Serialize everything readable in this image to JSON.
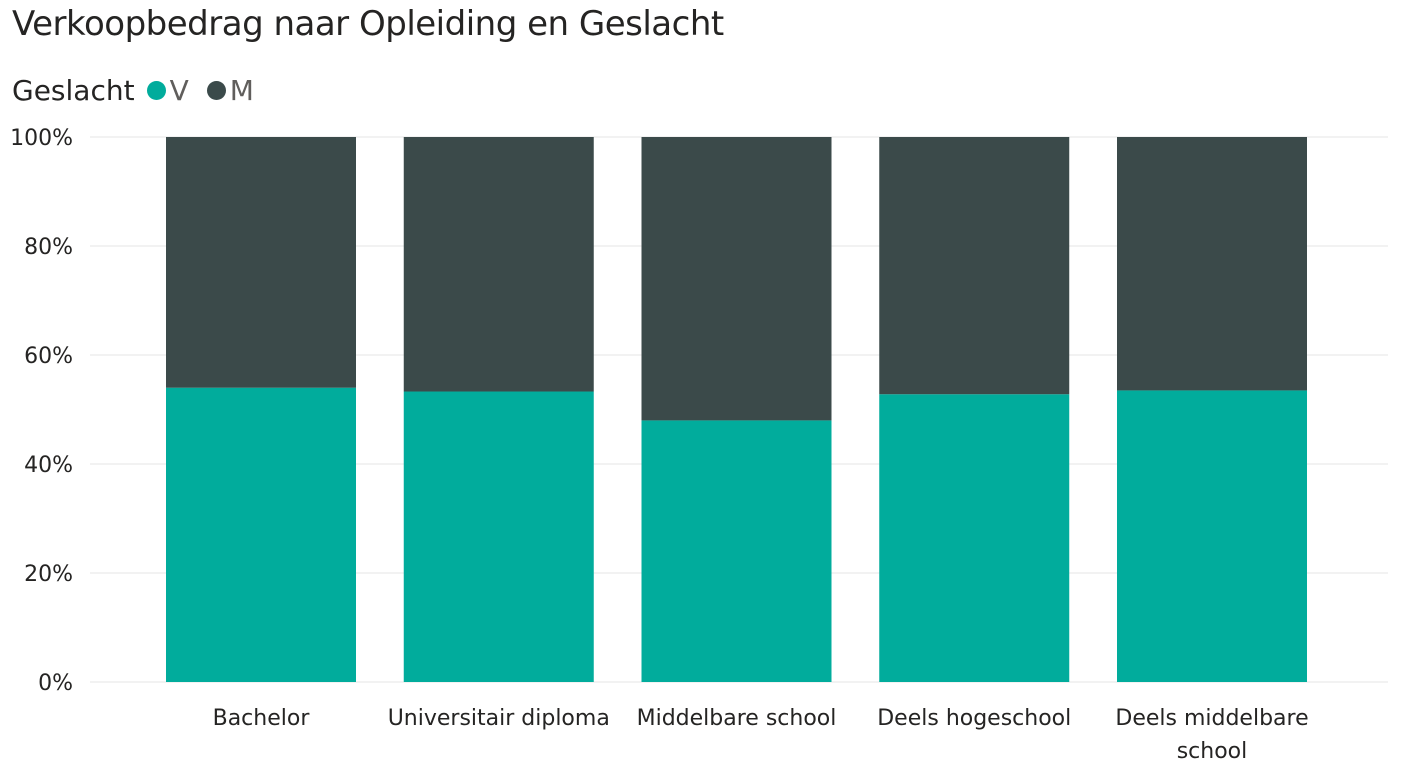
{
  "chart_data": {
    "type": "bar",
    "stacked": "percent",
    "title": "Verkoopbedrag naar Opleiding en Geslacht",
    "legend_title": "Geslacht",
    "legend_position": "top-left",
    "categories": [
      [
        "Bachelor"
      ],
      [
        "Universitair diploma"
      ],
      [
        "Middelbare school"
      ],
      [
        "Deels hogeschool"
      ],
      [
        "Deels middelbare",
        "school"
      ]
    ],
    "series": [
      {
        "name": "V",
        "color": "#01ac9c",
        "values": [
          54,
          53.3,
          48,
          52.8,
          53.5
        ]
      },
      {
        "name": "M",
        "color": "#3b4a4a",
        "values": [
          46,
          46.7,
          52,
          47.2,
          46.5
        ]
      }
    ],
    "ylim": [
      0,
      100
    ],
    "yticks": [
      0,
      20,
      40,
      60,
      80,
      100
    ],
    "ytick_labels": [
      "0%",
      "20%",
      "40%",
      "60%",
      "80%",
      "100%"
    ],
    "grid": true,
    "xlabel": "",
    "ylabel": ""
  }
}
